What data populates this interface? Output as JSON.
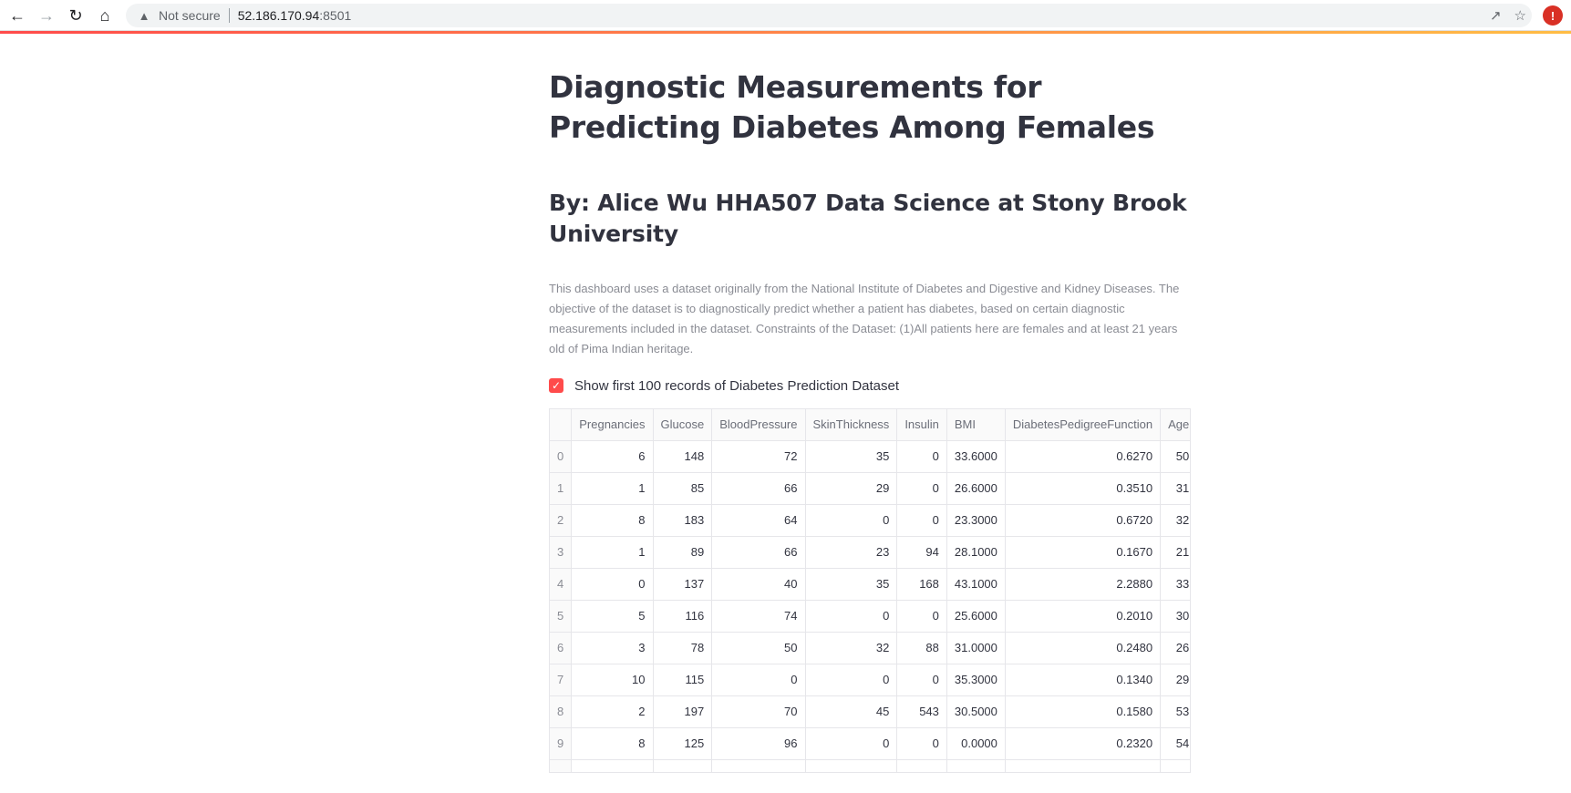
{
  "browser": {
    "security_label": "Not secure",
    "url_host": "52.186.170.94",
    "url_port": ":8501"
  },
  "page": {
    "title": "Diagnostic Measurements for Predicting Diabetes Among Females",
    "subtitle": "By: Alice Wu HHA507 Data Science at Stony Brook University",
    "description": "This dashboard uses a dataset originally from the National Institute of Diabetes and Digestive and Kidney Diseases. The objective of the dataset is to diagnostically predict whether a patient has diabetes, based on certain diagnostic measurements included in the dataset. Constraints of the Dataset: (1)All patients here are females and at least 21 years old of Pima Indian heritage.",
    "checkbox_label": "Show first 100 records of Diabetes Prediction Dataset",
    "checkbox_checked": true
  },
  "table": {
    "columns": [
      "",
      "Pregnancies",
      "Glucose",
      "BloodPressure",
      "SkinThickness",
      "Insulin",
      "BMI",
      "DiabetesPedigreeFunction",
      "Age"
    ],
    "rows": [
      [
        "0",
        "6",
        "148",
        "72",
        "35",
        "0",
        "33.6000",
        "0.6270",
        "50"
      ],
      [
        "1",
        "1",
        "85",
        "66",
        "29",
        "0",
        "26.6000",
        "0.3510",
        "31"
      ],
      [
        "2",
        "8",
        "183",
        "64",
        "0",
        "0",
        "23.3000",
        "0.6720",
        "32"
      ],
      [
        "3",
        "1",
        "89",
        "66",
        "23",
        "94",
        "28.1000",
        "0.1670",
        "21"
      ],
      [
        "4",
        "0",
        "137",
        "40",
        "35",
        "168",
        "43.1000",
        "2.2880",
        "33"
      ],
      [
        "5",
        "5",
        "116",
        "74",
        "0",
        "0",
        "25.6000",
        "0.2010",
        "30"
      ],
      [
        "6",
        "3",
        "78",
        "50",
        "32",
        "88",
        "31.0000",
        "0.2480",
        "26"
      ],
      [
        "7",
        "10",
        "115",
        "0",
        "0",
        "0",
        "35.3000",
        "0.1340",
        "29"
      ],
      [
        "8",
        "2",
        "197",
        "70",
        "45",
        "543",
        "30.5000",
        "0.1580",
        "53"
      ],
      [
        "9",
        "8",
        "125",
        "96",
        "0",
        "0",
        "0.0000",
        "0.2320",
        "54"
      ],
      [
        "",
        "",
        "",
        "",
        "",
        "",
        "",
        "",
        ""
      ]
    ]
  }
}
